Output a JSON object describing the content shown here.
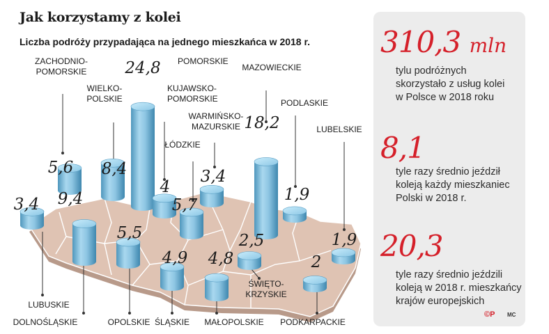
{
  "title": "Jak korzystamy z kolei",
  "subtitle": "Liczba podróży przypadająca na jednego mieszkańca w 2018 r.",
  "chart_data": {
    "type": "bar",
    "categories": [
      "ZACHODNIO-POMORSKIE",
      "POMORSKIE",
      "WIELKO-POLSKIE",
      "KUJAWSKO-POMORSKIE",
      "WARMIŃSKO-MAZURSKIE",
      "ŁÓDZKIE",
      "MAZOWIECKIE",
      "PODLASKIE",
      "LUBELSKIE",
      "LUBUSKIE",
      "DOLNOŚLĄSKIE",
      "OPOLSKIE",
      "ŚLĄSKIE",
      "MAŁOPOLSKIE",
      "ŚWIĘTO-KRZYSKIE",
      "PODKARPACKIE"
    ],
    "value_labels": [
      "5,6",
      "24,8",
      "8,4",
      "4",
      "3,4",
      "5,7",
      "18,2",
      "1,9",
      "1,9",
      "3,4",
      "9,4",
      "5,5",
      "4,9",
      "4,8",
      "2,5",
      "2"
    ],
    "values": [
      5.6,
      24.8,
      8.4,
      4,
      3.4,
      5.7,
      18.2,
      1.9,
      1.9,
      3.4,
      9.4,
      5.5,
      4.9,
      4.8,
      2.5,
      2
    ],
    "bar_color": "#8ec6e3",
    "map_color": "#dfc3b3"
  },
  "stats": [
    {
      "value": "310,3",
      "unit": "mln",
      "lines": [
        "tylu podróżnych",
        "skorzystało z usług kolei",
        "w Polsce w 2018 roku"
      ]
    },
    {
      "value": "8,1",
      "unit": "",
      "lines": [
        "tyle razy średnio jeździł",
        "koleją każdy mieszkaniec",
        "Polski w 2018 r."
      ]
    },
    {
      "value": "20,3",
      "unit": "",
      "lines": [
        "tyle razy średnio jeździli",
        "koleją w 2018 r. mieszkańcy",
        "krajów europejskich"
      ]
    }
  ],
  "footer": {
    "logo": "©P",
    "credit": "MC"
  }
}
